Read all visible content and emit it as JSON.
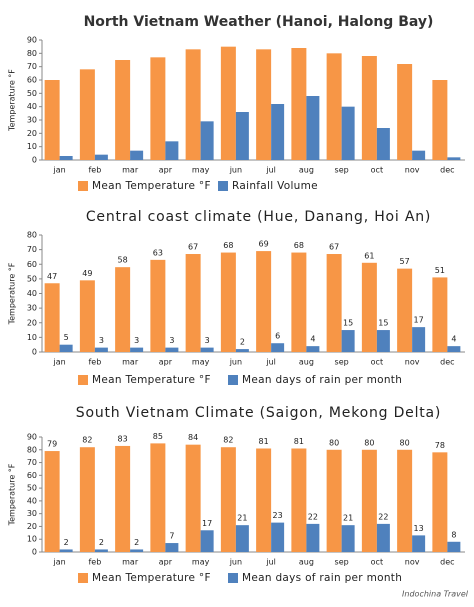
{
  "chart_data": [
    {
      "type": "bar",
      "title": "North Vietnam Weather (Hanoi, Halong Bay)",
      "ylabel": "Temperature °F",
      "categories": [
        "jan",
        "feb",
        "mar",
        "apr",
        "may",
        "jun",
        "jul",
        "aug",
        "sep",
        "oct",
        "nov",
        "dec"
      ],
      "series": [
        {
          "name": "Mean Temperature °F",
          "color": "#f79646",
          "values": [
            60,
            68,
            75,
            77,
            83,
            85,
            83,
            84,
            80,
            78,
            72,
            60
          ]
        },
        {
          "name": "Rainfall Volume",
          "color": "#4f81bd",
          "values": [
            3,
            4,
            7,
            14,
            29,
            36,
            42,
            48,
            40,
            24,
            7,
            2
          ]
        }
      ],
      "ylim": [
        0,
        90
      ],
      "yticks": [
        0,
        10,
        20,
        30,
        40,
        50,
        60,
        70,
        80,
        90
      ],
      "data_labels": false,
      "legend": "bottom"
    },
    {
      "type": "bar",
      "title": "Central coast climate (Hue, Danang, Hoi An)",
      "ylabel": "Temperature °F",
      "categories": [
        "jan",
        "feb",
        "mar",
        "apr",
        "may",
        "jun",
        "jul",
        "aug",
        "sep",
        "oct",
        "nov",
        "dec"
      ],
      "series": [
        {
          "name": "Mean Temperature °F",
          "color": "#f79646",
          "values": [
            47,
            49,
            58,
            63,
            67,
            68,
            69,
            68,
            67,
            61,
            57,
            51
          ]
        },
        {
          "name": "Mean days of rain per month",
          "color": "#4f81bd",
          "values": [
            5,
            3,
            3,
            3,
            3,
            2,
            6,
            4,
            15,
            15,
            17,
            4
          ]
        }
      ],
      "ylim": [
        0,
        80
      ],
      "yticks": [
        0,
        10,
        20,
        30,
        40,
        50,
        60,
        70,
        80
      ],
      "data_labels": true,
      "legend": "bottom"
    },
    {
      "type": "bar",
      "title": "South Vietnam Climate (Saigon, Mekong Delta)",
      "ylabel": "Temperature °F",
      "categories": [
        "jan",
        "feb",
        "mar",
        "apr",
        "may",
        "jun",
        "jul",
        "aug",
        "sep",
        "oct",
        "nov",
        "dec"
      ],
      "series": [
        {
          "name": "Mean Temperature °F",
          "color": "#f79646",
          "values": [
            79,
            82,
            83,
            85,
            84,
            82,
            81,
            81,
            80,
            80,
            80,
            78
          ]
        },
        {
          "name": "Mean days of rain per month",
          "color": "#4f81bd",
          "values": [
            2,
            2,
            2,
            7,
            17,
            21,
            23,
            22,
            21,
            22,
            13,
            8
          ]
        }
      ],
      "ylim": [
        0,
        90
      ],
      "yticks": [
        0,
        10,
        20,
        30,
        40,
        50,
        60,
        70,
        80,
        90
      ],
      "data_labels": true,
      "legend": "bottom"
    }
  ],
  "footer": "Indochina Travel"
}
